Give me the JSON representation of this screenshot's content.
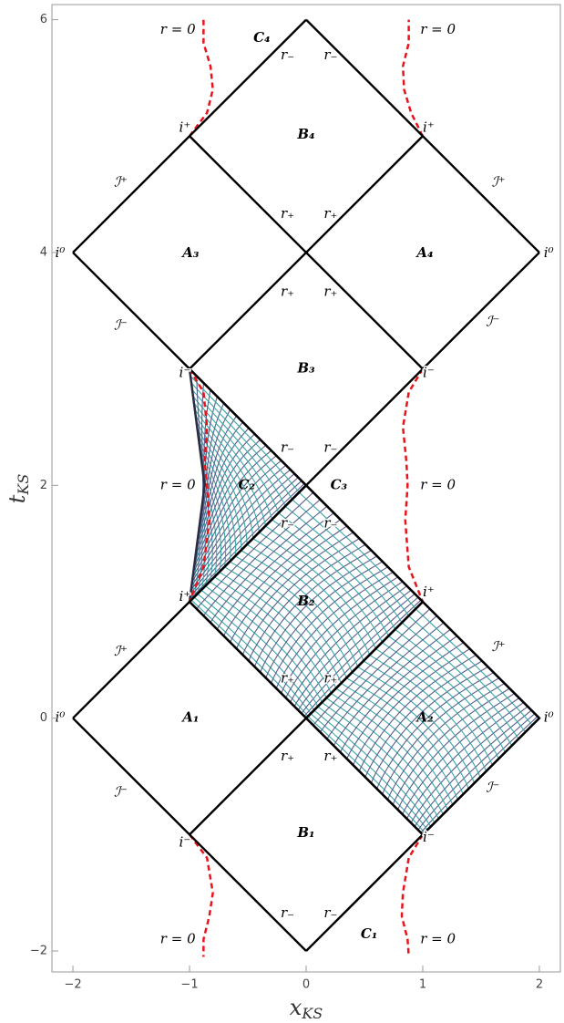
{
  "chart_data": {
    "type": "penrose",
    "xlabel": "x",
    "xlabel_sub": "KS",
    "ylabel": "t",
    "ylabel_sub": "KS",
    "xlim": [
      -2.18,
      2.18
    ],
    "ylim": [
      -2.18,
      6.13
    ],
    "xticks": [
      {
        "value": -2,
        "label": "−2"
      },
      {
        "value": -1,
        "label": "−1"
      },
      0,
      1,
      2
    ],
    "yticks": [
      {
        "value": -2,
        "label": "−2"
      },
      0,
      2,
      4,
      6
    ],
    "color": "#000000",
    "lines": [
      {
        "x": [
          -2,
          0
        ],
        "y": [
          0,
          -2
        ]
      },
      {
        "x": [
          0,
          2
        ],
        "y": [
          -2,
          0
        ]
      },
      {
        "x": [
          -2,
          0
        ],
        "y": [
          0,
          2
        ]
      },
      {
        "x": [
          2,
          0
        ],
        "y": [
          0,
          2
        ]
      },
      {
        "x": [
          -1,
          1
        ],
        "y": [
          -1,
          1
        ]
      },
      {
        "x": [
          1,
          -1
        ],
        "y": [
          -1,
          1
        ]
      },
      {
        "x": [
          0,
          2
        ],
        "y": [
          2,
          4
        ]
      },
      {
        "x": [
          0,
          -2
        ],
        "y": [
          2,
          4
        ]
      },
      {
        "x": [
          -1,
          1
        ],
        "y": [
          3,
          5
        ]
      },
      {
        "x": [
          1,
          -1
        ],
        "y": [
          3,
          5
        ]
      },
      {
        "x": [
          -2,
          0
        ],
        "y": [
          4,
          6
        ]
      },
      {
        "x": [
          2,
          0
        ],
        "y": [
          4,
          6
        ]
      }
    ],
    "curve_color": "#e8141c",
    "curves": [
      {
        "x": [
          -1,
          -0.85,
          -0.8,
          -0.82,
          -0.88,
          -0.88
        ],
        "y": [
          5,
          5.2,
          5.4,
          5.6,
          5.8,
          6.0
        ]
      },
      {
        "x": [
          1,
          0.9,
          0.84,
          0.83,
          0.88,
          0.88
        ],
        "y": [
          5,
          5.2,
          5.4,
          5.6,
          5.8,
          6.0
        ]
      },
      {
        "x": [
          -1,
          -0.88,
          -0.85,
          -0.87,
          -0.85,
          -0.83,
          -0.88,
          -1
        ],
        "y": [
          3,
          2.8,
          2.5,
          2.2,
          2.0,
          1.7,
          1.3,
          1
        ]
      },
      {
        "x": [
          1,
          0.88,
          0.83,
          0.86,
          0.87,
          0.85,
          0.88,
          1
        ],
        "y": [
          3,
          2.8,
          2.5,
          2.2,
          2.0,
          1.7,
          1.3,
          1
        ]
      },
      {
        "x": [
          -1,
          -0.85,
          -0.8,
          -0.83,
          -0.88,
          -0.88
        ],
        "y": [
          -1,
          -1.2,
          -1.5,
          -1.7,
          -1.9,
          -2.05
        ]
      },
      {
        "x": [
          1,
          0.88,
          0.83,
          0.82,
          0.87,
          0.88
        ],
        "y": [
          -1,
          -1.2,
          -1.5,
          -1.7,
          -1.9,
          -2.05
        ]
      }
    ],
    "mesh_colors": [
      "#36a9a6",
      "#5b5c8f"
    ],
    "mesh": [
      {
        "x": [
          -1,
          0,
          -1,
          -0.87
        ],
        "y": [
          1,
          2,
          3,
          2
        ]
      },
      {
        "x": [
          0,
          1,
          0,
          -1
        ],
        "y": [
          0,
          1,
          2,
          1
        ]
      },
      {
        "x": [
          1,
          2,
          1,
          0
        ],
        "y": [
          -1,
          0,
          1,
          0
        ]
      }
    ],
    "annotations": [
      {
        "text": "r = 0",
        "x": -1.1,
        "y": 5.91
      },
      {
        "text": "r = 0",
        "x": 1.13,
        "y": 5.91
      },
      {
        "text": "C₄",
        "x": -0.38,
        "y": 5.84,
        "bold": true
      },
      {
        "text": "r₋",
        "x": -0.16,
        "y": 5.69
      },
      {
        "text": "r₋",
        "x": 0.21,
        "y": 5.69
      },
      {
        "text": "i⁺",
        "x": -1.04,
        "y": 5.07
      },
      {
        "text": "i⁺",
        "x": 1.05,
        "y": 5.07
      },
      {
        "text": "B₄",
        "x": 0,
        "y": 5.01,
        "bold": true
      },
      {
        "text": "ℐ⁺",
        "x": -1.59,
        "y": 4.6
      },
      {
        "text": "ℐ⁺",
        "x": 1.65,
        "y": 4.6
      },
      {
        "text": "r₊",
        "x": -0.16,
        "y": 4.33
      },
      {
        "text": "r₊",
        "x": 0.21,
        "y": 4.33
      },
      {
        "text": "i⁰",
        "x": -2.11,
        "y": 3.99
      },
      {
        "text": "i⁰",
        "x": 2.08,
        "y": 3.99
      },
      {
        "text": "A₃",
        "x": -0.99,
        "y": 3.99,
        "bold": true
      },
      {
        "text": "A₄",
        "x": 1.02,
        "y": 3.99,
        "bold": true
      },
      {
        "text": "r₊",
        "x": -0.16,
        "y": 3.66
      },
      {
        "text": "r₊",
        "x": 0.21,
        "y": 3.66
      },
      {
        "text": "ℐ⁻",
        "x": -1.59,
        "y": 3.37
      },
      {
        "text": "ℐ⁻",
        "x": 1.6,
        "y": 3.4
      },
      {
        "text": "i⁻",
        "x": -1.04,
        "y": 2.96
      },
      {
        "text": "i⁻",
        "x": 1.05,
        "y": 2.96
      },
      {
        "text": "B₃",
        "x": 0,
        "y": 3.0,
        "bold": true
      },
      {
        "text": "r₋",
        "x": -0.16,
        "y": 2.32
      },
      {
        "text": "r₋",
        "x": 0.21,
        "y": 2.32
      },
      {
        "text": "r = 0",
        "x": -1.1,
        "y": 2.0
      },
      {
        "text": "r = 0",
        "x": 1.13,
        "y": 2.0
      },
      {
        "text": "C₂",
        "x": -0.51,
        "y": 2.0,
        "bold": true
      },
      {
        "text": "C₃",
        "x": 0.28,
        "y": 2.0,
        "bold": true
      },
      {
        "text": "r₋",
        "x": -0.16,
        "y": 1.67
      },
      {
        "text": "r₋",
        "x": 0.21,
        "y": 1.67
      },
      {
        "text": "i⁺",
        "x": -1.04,
        "y": 1.04
      },
      {
        "text": "i⁺",
        "x": 1.05,
        "y": 1.08
      },
      {
        "text": "B₂",
        "x": 0,
        "y": 1.0,
        "bold": true
      },
      {
        "text": "ℐ⁺",
        "x": -1.59,
        "y": 0.57
      },
      {
        "text": "ℐ⁺",
        "x": 1.65,
        "y": 0.61
      },
      {
        "text": "r₊",
        "x": -0.16,
        "y": 0.34
      },
      {
        "text": "r₊",
        "x": 0.21,
        "y": 0.34
      },
      {
        "text": "i⁰",
        "x": -2.11,
        "y": 0
      },
      {
        "text": "i⁰",
        "x": 2.08,
        "y": 0
      },
      {
        "text": "A₁",
        "x": -0.99,
        "y": 0,
        "bold": true
      },
      {
        "text": "A₂",
        "x": 1.02,
        "y": 0,
        "bold": true
      },
      {
        "text": "r₊",
        "x": -0.16,
        "y": -0.33
      },
      {
        "text": "r₊",
        "x": 0.21,
        "y": -0.33
      },
      {
        "text": "ℐ⁻",
        "x": -1.59,
        "y": -0.64
      },
      {
        "text": "ℐ⁻",
        "x": 1.6,
        "y": -0.6
      },
      {
        "text": "i⁻",
        "x": -1.04,
        "y": -1.07
      },
      {
        "text": "i⁻",
        "x": 1.05,
        "y": -1.03
      },
      {
        "text": "B₁",
        "x": 0,
        "y": -0.99,
        "bold": true
      },
      {
        "text": "r₋",
        "x": -0.16,
        "y": -1.68
      },
      {
        "text": "r₋",
        "x": 0.21,
        "y": -1.68
      },
      {
        "text": "C₁",
        "x": 0.54,
        "y": -1.86,
        "bold": true
      },
      {
        "text": "r = 0",
        "x": -1.1,
        "y": -1.9
      },
      {
        "text": "r = 0",
        "x": 1.13,
        "y": -1.9
      }
    ]
  }
}
